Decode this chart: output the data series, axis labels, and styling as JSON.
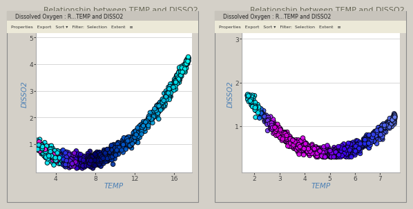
{
  "title": "Relationship between TEMP and DISSO2",
  "xlabel": "TEMP",
  "ylabel": "DISSO2",
  "left_xlim": [
    2.0,
    17.8
  ],
  "left_ylim": [
    -0.05,
    5.85
  ],
  "left_xticks": [
    4,
    8,
    12,
    16
  ],
  "left_yticks": [
    1,
    2,
    3,
    4,
    5
  ],
  "right_xlim": [
    1.5,
    7.8
  ],
  "right_ylim": [
    -0.05,
    3.55
  ],
  "right_xticks": [
    2,
    3,
    4,
    5,
    6,
    7
  ],
  "right_yticks": [
    1,
    2,
    3
  ],
  "win_bg": "#d4d0c8",
  "titlebar_bg": "#d4d0c8",
  "titlebar_active": "#3162ab",
  "toolbar_bg": "#ece9d8",
  "panel_bg": "#ffffff",
  "title_color": "#666655",
  "axis_label_color": "#4a7fb5",
  "tick_color": "#444444",
  "grid_color": "#c8c8c8",
  "spine_color": "#aaaaaa"
}
